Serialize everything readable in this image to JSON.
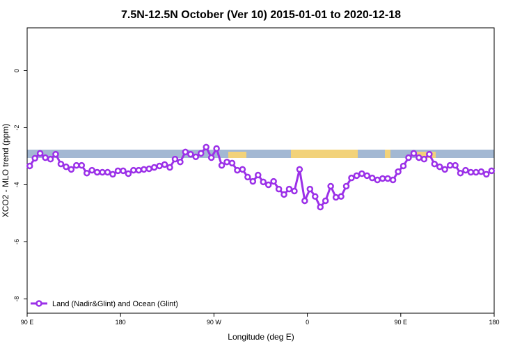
{
  "chart_data": {
    "type": "line",
    "title": "7.5N-12.5N October (Ver 10)   2015-01-01 to 2020-12-18",
    "x_label": "Longitude (deg E)",
    "y_label": "XCO2 - MLO trend (ppm)",
    "xlim": [
      90,
      540
    ],
    "ylim": [
      -8.5,
      1.5
    ],
    "xticks": [
      {
        "value": 90,
        "label": "90 E"
      },
      180,
      {
        "value": 270,
        "label": "90 W"
      },
      {
        "value": 360,
        "label": "0"
      },
      {
        "value": 450,
        "label": "90 E"
      },
      180
    ],
    "yticks": [
      0,
      -2,
      -4,
      -6,
      -8
    ],
    "legend": "bottom-left",
    "x": [
      92.5,
      97.5,
      102.5,
      107.5,
      112.5,
      117.5,
      122.5,
      127.5,
      132.5,
      137.5,
      142.5,
      147.5,
      152.5,
      157.5,
      162.5,
      167.5,
      172.5,
      177.5,
      182.5,
      187.5,
      192.5,
      197.5,
      202.5,
      207.5,
      212.5,
      217.5,
      222.5,
      227.5,
      232.5,
      237.5,
      242.5,
      247.5,
      252.5,
      257.5,
      262.5,
      267.5,
      272.5,
      277.5,
      282.5,
      287.5,
      292.5,
      297.5,
      302.5,
      307.5,
      312.5,
      317.5,
      322.5,
      327.5,
      332.5,
      337.5,
      342.5,
      347.5,
      352.5,
      357.5,
      362.5,
      367.5,
      372.5,
      377.5,
      382.5,
      387.5,
      392.5,
      397.5,
      402.5,
      407.5,
      412.5,
      417.5,
      422.5,
      427.5,
      432.5,
      437.5,
      442.5,
      447.5,
      452.5,
      457.5,
      462.5,
      467.5,
      472.5,
      477.5,
      482.5,
      487.5,
      492.5,
      497.5,
      502.5,
      507.5,
      512.5,
      517.5,
      522.5,
      527.5,
      532.5,
      537.5
    ],
    "series": [
      {
        "name": "Land (Nadir&Glint) and Ocean (Glint)",
        "color": "#9b30e8",
        "values": [
          -3.34,
          -3.07,
          -2.9,
          -3.05,
          -3.1,
          -2.93,
          -3.27,
          -3.37,
          -3.46,
          -3.32,
          -3.32,
          -3.59,
          -3.49,
          -3.56,
          -3.56,
          -3.56,
          -3.63,
          -3.51,
          -3.51,
          -3.61,
          -3.49,
          -3.49,
          -3.46,
          -3.44,
          -3.39,
          -3.34,
          -3.29,
          -3.39,
          -3.1,
          -3.2,
          -2.85,
          -2.93,
          -3.02,
          -2.9,
          -2.68,
          -3.05,
          -2.73,
          -3.32,
          -3.2,
          -3.24,
          -3.49,
          -3.46,
          -3.73,
          -3.88,
          -3.66,
          -3.9,
          -4.0,
          -3.88,
          -4.15,
          -4.34,
          -4.15,
          -4.22,
          -3.46,
          -4.56,
          -4.15,
          -4.41,
          -4.78,
          -4.56,
          -4.05,
          -4.44,
          -4.41,
          -4.05,
          -3.76,
          -3.68,
          -3.61,
          -3.68,
          -3.76,
          -3.83,
          -3.78,
          -3.78,
          -3.83,
          -3.54,
          -3.34,
          -3.05,
          -2.9,
          -3.05,
          -3.1,
          -2.93,
          -3.27,
          -3.37,
          -3.46,
          -3.32,
          -3.32,
          -3.59,
          -3.49,
          -3.56,
          -3.56,
          -3.54,
          -3.63,
          -3.51
        ]
      }
    ]
  }
}
